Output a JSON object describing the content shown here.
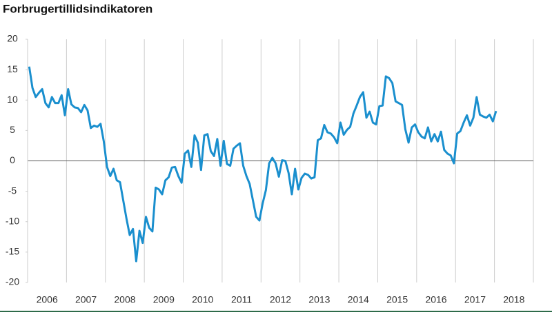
{
  "chart_data": {
    "type": "line",
    "title": "Forbrugertillidsindikatoren",
    "categories": [
      null,
      null,
      null,
      null,
      null,
      null,
      "2006",
      null,
      null,
      null,
      null,
      null,
      null,
      null,
      null,
      null,
      null,
      null,
      "2007",
      null,
      null,
      null,
      null,
      null,
      null,
      null,
      null,
      null,
      null,
      null,
      "2008",
      null,
      null,
      null,
      null,
      null,
      null,
      null,
      null,
      null,
      null,
      null,
      "2009",
      null,
      null,
      null,
      null,
      null,
      null,
      null,
      null,
      null,
      null,
      null,
      "2010",
      null,
      null,
      null,
      null,
      null,
      null,
      null,
      null,
      null,
      null,
      null,
      "2011",
      null,
      null,
      null,
      null,
      null,
      null,
      null,
      null,
      null,
      null,
      null,
      "2012",
      null,
      null,
      null,
      null,
      null,
      null,
      null,
      null,
      null,
      null,
      null,
      "2013",
      null,
      null,
      null,
      null,
      null,
      null,
      null,
      null,
      null,
      null,
      null,
      "2014",
      null,
      null,
      null,
      null,
      null,
      null,
      null,
      null,
      null,
      null,
      null,
      "2015",
      null,
      null,
      null,
      null,
      null,
      null,
      null,
      null,
      null,
      null,
      null,
      "2016",
      null,
      null,
      null,
      null,
      null,
      null,
      null,
      null,
      null,
      null,
      null,
      "2017",
      null,
      null,
      null,
      null,
      null,
      null,
      null,
      null,
      null,
      null,
      null,
      "2018",
      null,
      null,
      null,
      null,
      null
    ],
    "series": [
      {
        "color": "#1a8fce",
        "values": [
          15.5,
          12,
          10.5,
          11.2,
          11.8,
          9.5,
          8.8,
          10.5,
          9.5,
          9.5,
          10.8,
          7.5,
          11.8,
          9.3,
          8.8,
          8.7,
          8,
          9.2,
          8.3,
          5.4,
          5.8,
          5.6,
          6.1,
          3.2,
          -1,
          -2.5,
          -1.3,
          -3.2,
          -3.5,
          -6.5,
          -9.5,
          -12.2,
          -11.2,
          -16.5,
          -11.5,
          -13.5,
          -9.2,
          -11,
          -11.6,
          -4.4,
          -4.7,
          -5.5,
          -3.2,
          -2.7,
          -1.1,
          -1,
          -2.5,
          -3.6,
          1.2,
          1.7,
          -1,
          4.2,
          3,
          -1.5,
          4.2,
          4.4,
          1.6,
          0.8,
          3.6,
          -0.8,
          3.3,
          -0.5,
          -0.8,
          2,
          2.5,
          2.9,
          -0.8,
          -2.5,
          -3.8,
          -6.5,
          -9.2,
          -9.8,
          -7,
          -4.8,
          -0.4,
          0.5,
          -0.4,
          -2.6,
          0.1,
          0,
          -2,
          -5.5,
          -1.3,
          -4.7,
          -2.8,
          -2.1,
          -2.3,
          -2.9,
          -2.7,
          3.4,
          3.7,
          5.9,
          4.7,
          4.5,
          3.9,
          2.9,
          6.3,
          4.3,
          5.1,
          5.6,
          7.8,
          9.1,
          10.5,
          11.3,
          7.1,
          8.1,
          6.3,
          6,
          9,
          9.1,
          13.9,
          13.6,
          12.8,
          9.8,
          9.5,
          9.2,
          5.2,
          3,
          5.5,
          6,
          4.7,
          4,
          3.7,
          5.5,
          3.2,
          4.4,
          3.2,
          4.8,
          1.8,
          1.2,
          0.9,
          -0.4,
          4.5,
          4.9,
          6.3,
          7.5,
          5.8,
          7.1,
          10.5,
          7.6,
          7.3,
          7.1,
          7.6,
          6.5,
          8.2,
          null,
          null,
          null,
          null,
          null,
          null,
          null,
          null,
          null,
          null,
          null
        ]
      }
    ],
    "ylim": [
      -20,
      20
    ],
    "yticks": [
      -20,
      -15,
      -10,
      -5,
      0,
      5,
      10,
      15,
      20
    ]
  }
}
